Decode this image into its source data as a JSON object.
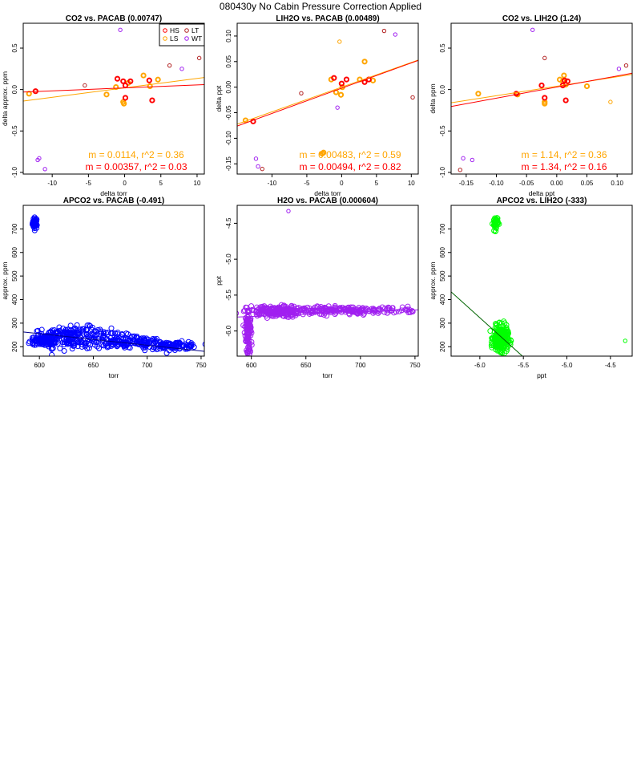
{
  "suptitle": "080430y   No Cabin Pressure Correction Applied",
  "colors": {
    "HS": "#ff0000",
    "LS": "#ffa500",
    "LT": "#b22222",
    "WT": "#a020f0",
    "blue": "#0000ff",
    "navy": "#00008b",
    "purple": "#a020f0",
    "green": "#00ff00",
    "darkgreen": "#006400"
  },
  "chart_data": [
    {
      "type": "scatter",
      "title": "CO2 vs. PACAB (0.00747)",
      "xlabel": "delta torr",
      "ylabel": "delta approx. ppm",
      "xlim": [
        -14,
        11
      ],
      "ylim": [
        -1.02,
        0.8
      ],
      "xticks": [
        -10,
        -5,
        0,
        5,
        10
      ],
      "yticks": [
        -1.0,
        -0.5,
        0.0,
        0.5
      ],
      "ytick_labels": [
        "-1.0",
        "-0.5",
        "0.0",
        "0.5"
      ],
      "legend": [
        {
          "label": "HS",
          "color": "#ff0000"
        },
        {
          "label": "LT",
          "color": "#b22222"
        },
        {
          "label": "LS",
          "color": "#ffa500"
        },
        {
          "label": "WT",
          "color": "#a020f0"
        }
      ],
      "series": [
        {
          "name": "LS",
          "color": "#ffa500",
          "bold": true,
          "x": [
            -13.2,
            -2.5,
            -1.2,
            -0.2,
            -0.1,
            0.5,
            2.6,
            3.5,
            4.6
          ],
          "y": [
            -0.05,
            -0.06,
            0.03,
            -0.15,
            -0.17,
            0.08,
            0.17,
            0.04,
            0.12
          ]
        },
        {
          "name": "HS",
          "color": "#ff0000",
          "bold": true,
          "x": [
            -12.3,
            -1.0,
            -0.2,
            0.1,
            0.8,
            3.4,
            3.8,
            0.1
          ],
          "y": [
            -0.02,
            0.13,
            0.1,
            -0.1,
            0.1,
            0.11,
            -0.13,
            0.05
          ]
        },
        {
          "name": "LT",
          "color": "#b22222",
          "bold": false,
          "x": [
            -5.5,
            6.2,
            10.3
          ],
          "y": [
            0.05,
            0.29,
            0.38
          ]
        },
        {
          "name": "WT",
          "color": "#a020f0",
          "bold": false,
          "x": [
            -12.0,
            -11.8,
            -11.0,
            -0.6,
            7.9
          ],
          "y": [
            -0.85,
            -0.83,
            -0.96,
            0.72,
            0.25
          ]
        }
      ],
      "fits": [
        {
          "color": "#ffa500",
          "slope": 0.0114,
          "intercept": 0.02
        },
        {
          "color": "#ff0000",
          "slope": 0.00357,
          "intercept": 0.02
        }
      ],
      "annotations": [
        {
          "text": "m = 0.0114, r^2 = 0.36",
          "color": "#ffa500"
        },
        {
          "text": "m = 0.00357, r^2 = 0.03",
          "color": "#ff0000"
        }
      ]
    },
    {
      "type": "scatter",
      "title": "LIH2O vs. PACAB (0.00489)",
      "xlabel": "delta torr",
      "ylabel": "delta ppt",
      "xlim": [
        -15,
        11
      ],
      "ylim": [
        -0.17,
        0.125
      ],
      "xticks": [
        -10,
        -5,
        0,
        5,
        10
      ],
      "yticks": [
        -0.15,
        -0.1,
        -0.05,
        0.0,
        0.05,
        0.1
      ],
      "ytick_labels": [
        "-0.15",
        "-0.10",
        "-0.05",
        "0.00",
        "0.05",
        "0.10"
      ],
      "series": [
        {
          "name": "LS",
          "color": "#ffa500",
          "bold": true,
          "x": [
            -13.8,
            -1.5,
            -0.8,
            -0.1,
            0.1,
            2.6,
            3.3,
            4.5,
            -2.8,
            -2.6
          ],
          "y": [
            -0.065,
            0.015,
            -0.01,
            -0.015,
            0.0,
            0.015,
            0.05,
            0.013,
            -0.13,
            -0.128
          ]
        },
        {
          "name": "HS",
          "color": "#ff0000",
          "bold": true,
          "x": [
            -12.7,
            -1.1,
            0.0,
            0.7,
            3.3,
            3.9
          ],
          "y": [
            -0.067,
            0.018,
            0.007,
            0.015,
            0.01,
            0.015
          ]
        },
        {
          "name": "LT",
          "color": "#b22222",
          "bold": false,
          "x": [
            -5.8,
            6.1,
            10.2,
            -11.4
          ],
          "y": [
            -0.012,
            0.11,
            -0.02,
            -0.16
          ]
        },
        {
          "name": "WT",
          "color": "#a020f0",
          "bold": false,
          "x": [
            -12.3,
            -12.0,
            -0.6,
            7.7
          ],
          "y": [
            -0.14,
            -0.155,
            -0.04,
            0.103
          ]
        },
        {
          "name": "LS-sparse",
          "color": "#ffa500",
          "bold": false,
          "x": [
            -0.3
          ],
          "y": [
            0.089
          ]
        }
      ],
      "fits": [
        {
          "color": "#ffa500",
          "slope": 0.00483,
          "intercept": 0.0
        },
        {
          "color": "#ff0000",
          "slope": 0.00494,
          "intercept": -0.002
        }
      ],
      "annotations": [
        {
          "text": "m = 0.00483, r^2 = 0.59",
          "color": "#ffa500"
        },
        {
          "text": "m = 0.00494, r^2 = 0.82",
          "color": "#ff0000"
        }
      ]
    },
    {
      "type": "scatter",
      "title": "CO2 vs. LIH2O (1.24)",
      "xlabel": "delta ppt",
      "ylabel": "delta ppm",
      "xlim": [
        -0.175,
        0.125
      ],
      "ylim": [
        -1.02,
        0.8
      ],
      "xticks": [
        -0.15,
        -0.1,
        -0.05,
        0.0,
        0.05,
        0.1
      ],
      "xtick_labels": [
        "-0.15",
        "-0.10",
        "-0.05",
        "0.00",
        "0.05",
        "0.10"
      ],
      "yticks": [
        -1.0,
        -0.5,
        0.0,
        0.5
      ],
      "ytick_labels": [
        "-1.0",
        "-0.5",
        "0.0",
        "0.5"
      ],
      "series": [
        {
          "name": "LS",
          "color": "#ffa500",
          "bold": true,
          "x": [
            -0.13,
            -0.065,
            -0.02,
            0.01,
            0.012,
            0.015,
            0.05,
            -0.02,
            0.005
          ],
          "y": [
            -0.05,
            -0.06,
            -0.15,
            0.1,
            0.17,
            0.06,
            0.04,
            -0.17,
            0.12
          ]
        },
        {
          "name": "HS",
          "color": "#ff0000",
          "bold": true,
          "x": [
            -0.067,
            -0.02,
            0.015,
            0.018,
            0.01,
            0.013,
            -0.025
          ],
          "y": [
            -0.05,
            -0.1,
            -0.13,
            0.1,
            0.05,
            0.11,
            0.05
          ]
        },
        {
          "name": "LT",
          "color": "#b22222",
          "bold": false,
          "x": [
            -0.02,
            0.115,
            -0.16
          ],
          "y": [
            0.38,
            0.29,
            -0.97
          ]
        },
        {
          "name": "WT",
          "color": "#a020f0",
          "bold": false,
          "x": [
            -0.155,
            -0.14,
            -0.04,
            0.103
          ],
          "y": [
            -0.83,
            -0.85,
            0.72,
            0.25
          ]
        },
        {
          "name": "LS-sparse",
          "color": "#ffa500",
          "bold": false,
          "x": [
            0.089
          ],
          "y": [
            -0.15
          ]
        }
      ],
      "fits": [
        {
          "color": "#ffa500",
          "slope": 1.14,
          "intercept": 0.04
        },
        {
          "color": "#ff0000",
          "slope": 1.34,
          "intercept": 0.03
        }
      ],
      "annotations": [
        {
          "text": "m = 1.14, r^2 = 0.36",
          "color": "#ffa500"
        },
        {
          "text": "m = 1.34, r^2 = 0.16",
          "color": "#ff0000"
        }
      ]
    },
    {
      "type": "scatter",
      "title": "APCO2 vs. PACAB (-0.491)",
      "xlabel": "torr",
      "ylabel": "approx. ppm",
      "xlim": [
        585,
        753
      ],
      "ylim": [
        160,
        800
      ],
      "xticks": [
        600,
        650,
        700,
        750
      ],
      "yticks": [
        200,
        300,
        400,
        500,
        600,
        700
      ],
      "cloud_color": "#0000ff",
      "clusters": [
        {
          "cx": 596,
          "cy": 725,
          "sx": 1.2,
          "sy": 12,
          "n": 40
        },
        {
          "cx": 605,
          "cy": 225,
          "sx": 5,
          "sy": 12,
          "n": 90
        },
        {
          "cx": 630,
          "cy": 240,
          "sx": 18,
          "sy": 22,
          "n": 180
        },
        {
          "cx": 680,
          "cy": 215,
          "sx": 18,
          "sy": 12,
          "n": 130
        },
        {
          "cx": 725,
          "cy": 205,
          "sx": 12,
          "sy": 8,
          "n": 90
        }
      ],
      "path": {
        "x": [
          590,
          600,
          610,
          620,
          630,
          645,
          660,
          680,
          700,
          720,
          745
        ],
        "y": [
          215,
          225,
          265,
          260,
          270,
          275,
          260,
          250,
          230,
          210,
          205
        ]
      },
      "fits": [
        {
          "color": "#00008b",
          "slope": -0.491,
          "intercept": 550
        }
      ]
    },
    {
      "type": "scatter",
      "title": "H2O vs. PACAB (0.000604)",
      "xlabel": "torr",
      "ylabel": "ppt",
      "xlim": [
        587,
        753
      ],
      "ylim": [
        -6.35,
        -4.25
      ],
      "xticks": [
        600,
        650,
        700,
        750
      ],
      "yticks": [
        -6.0,
        -5.5,
        -5.0,
        -4.5
      ],
      "ytick_labels": [
        "-6.0",
        "-5.5",
        "-5.0",
        "-4.5"
      ],
      "cloud_color": "#a020f0",
      "clusters": [
        {
          "cx": 597,
          "cy": -5.95,
          "sx": 1.5,
          "sy": 0.12,
          "n": 90
        },
        {
          "cx": 598,
          "cy": -6.2,
          "sx": 1.0,
          "sy": 0.06,
          "n": 25
        },
        {
          "cx": 620,
          "cy": -5.73,
          "sx": 12,
          "sy": 0.04,
          "n": 180
        },
        {
          "cx": 685,
          "cy": -5.71,
          "sx": 35,
          "sy": 0.025,
          "n": 230
        }
      ],
      "points": [
        {
          "x": 634,
          "y": -4.33
        }
      ],
      "fits": [
        {
          "color": "#a020f0",
          "slope": 0.000604,
          "intercept": -6.16
        }
      ]
    },
    {
      "type": "scatter",
      "title": "APCO2 vs. LIH2O (-333)",
      "xlabel": "ppt",
      "ylabel": "approx. ppm",
      "xlim": [
        -6.33,
        -4.25
      ],
      "ylim": [
        160,
        800
      ],
      "xticks": [
        -6.0,
        -5.5,
        -5.0,
        -4.5
      ],
      "xtick_labels": [
        "-6.0",
        "-5.5",
        "-5.0",
        "-4.5"
      ],
      "yticks": [
        200,
        300,
        400,
        500,
        600,
        700
      ],
      "cloud_color": "#00ff00",
      "clusters": [
        {
          "cx": -5.82,
          "cy": 725,
          "sx": 0.015,
          "sy": 15,
          "n": 40
        },
        {
          "cx": -5.76,
          "cy": 235,
          "sx": 0.04,
          "sy": 25,
          "n": 350
        }
      ],
      "points": [
        {
          "x": -4.33,
          "y": 225
        }
      ],
      "fits": [
        {
          "color": "#006400",
          "slope": -333,
          "intercept": -1675
        }
      ]
    }
  ]
}
